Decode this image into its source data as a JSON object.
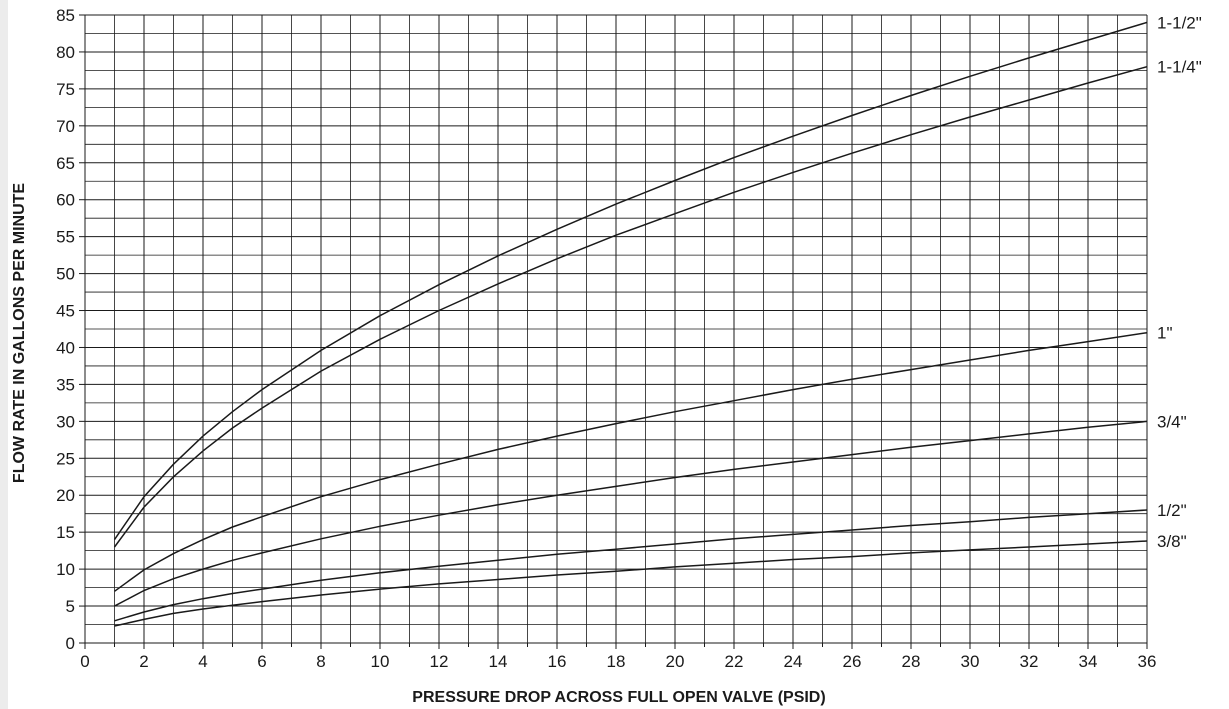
{
  "chart_data": {
    "type": "line",
    "title": "",
    "xlabel": "PRESSURE DROP ACROSS FULL OPEN VALVE (PSID)",
    "ylabel": "FLOW RATE IN GALLONS PER MINUTE",
    "xlim": [
      0,
      36
    ],
    "ylim": [
      0,
      85
    ],
    "x_ticks": [
      0,
      2,
      4,
      6,
      8,
      10,
      12,
      14,
      16,
      18,
      20,
      22,
      24,
      26,
      28,
      30,
      32,
      34,
      36
    ],
    "y_ticks": [
      0,
      5,
      10,
      15,
      20,
      25,
      30,
      35,
      40,
      45,
      50,
      55,
      60,
      65,
      70,
      75,
      80,
      85
    ],
    "grid": true,
    "legend": "labels at right end of each curve",
    "x": [
      1,
      2,
      3,
      4,
      5,
      6,
      8,
      10,
      12,
      14,
      16,
      18,
      20,
      22,
      24,
      26,
      28,
      30,
      32,
      34,
      36
    ],
    "series": [
      {
        "name": "1-1/2\"",
        "values": [
          14,
          19.8,
          24.2,
          28,
          31.3,
          34.3,
          39.6,
          44.3,
          48.5,
          52.4,
          56,
          59.4,
          62.6,
          65.7,
          68.6,
          71.4,
          74.1,
          76.7,
          79.2,
          81.6,
          84
        ]
      },
      {
        "name": "1-1/4\"",
        "values": [
          13,
          18.4,
          22.5,
          26,
          29.1,
          31.8,
          36.8,
          41.1,
          45,
          48.6,
          52,
          55.2,
          58.1,
          61,
          63.7,
          66.3,
          68.8,
          71.2,
          73.5,
          75.8,
          78
        ]
      },
      {
        "name": "1\"",
        "values": [
          7,
          9.9,
          12.1,
          14,
          15.7,
          17.1,
          19.8,
          22.1,
          24.2,
          26.2,
          28,
          29.7,
          31.3,
          32.8,
          34.3,
          35.7,
          37,
          38.3,
          39.6,
          40.8,
          42
        ]
      },
      {
        "name": "3/4\"",
        "values": [
          5,
          7.1,
          8.7,
          10,
          11.2,
          12.2,
          14.1,
          15.8,
          17.3,
          18.7,
          20,
          21.2,
          22.4,
          23.5,
          24.5,
          25.5,
          26.5,
          27.4,
          28.3,
          29.2,
          30
        ]
      },
      {
        "name": "1/2\"",
        "values": [
          3,
          4.2,
          5.2,
          6,
          6.7,
          7.3,
          8.5,
          9.5,
          10.4,
          11.2,
          12,
          12.7,
          13.4,
          14.1,
          14.7,
          15.3,
          15.9,
          16.4,
          17,
          17.5,
          18
        ]
      },
      {
        "name": "3/8\"",
        "values": [
          2.3,
          3.2,
          4,
          4.6,
          5.1,
          5.6,
          6.5,
          7.3,
          8,
          8.6,
          9.2,
          9.7,
          10.3,
          10.8,
          11.3,
          11.7,
          12.2,
          12.6,
          13,
          13.4,
          13.8
        ]
      }
    ]
  },
  "colors": {
    "line": "#1a1a1a",
    "grid": "#1a1a1a",
    "edge": "#ececec"
  }
}
